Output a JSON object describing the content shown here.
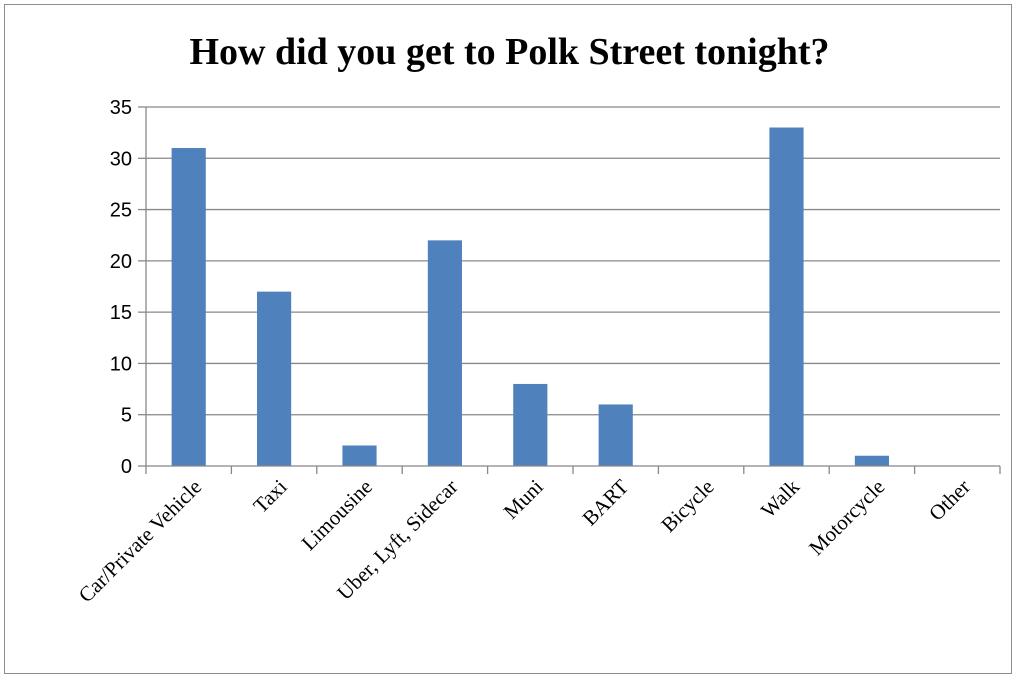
{
  "chart_data": {
    "type": "bar",
    "title": "How did you get to Polk Street tonight?",
    "categories": [
      "Car/Private Vehicle",
      "Taxi",
      "Limousine",
      "Uber, Lyft, Sidecar",
      "Muni",
      "BART",
      "Bicycle",
      "Walk",
      "Motorcycle",
      "Other"
    ],
    "values": [
      31,
      17,
      2,
      22,
      8,
      6,
      0,
      33,
      1,
      0
    ],
    "xlabel": "",
    "ylabel": "",
    "ylim": [
      0,
      35
    ],
    "yticks": [
      0,
      5,
      10,
      15,
      20,
      25,
      30,
      35
    ],
    "grid": true,
    "legend": "none",
    "bar_color": "#4f81bd"
  }
}
